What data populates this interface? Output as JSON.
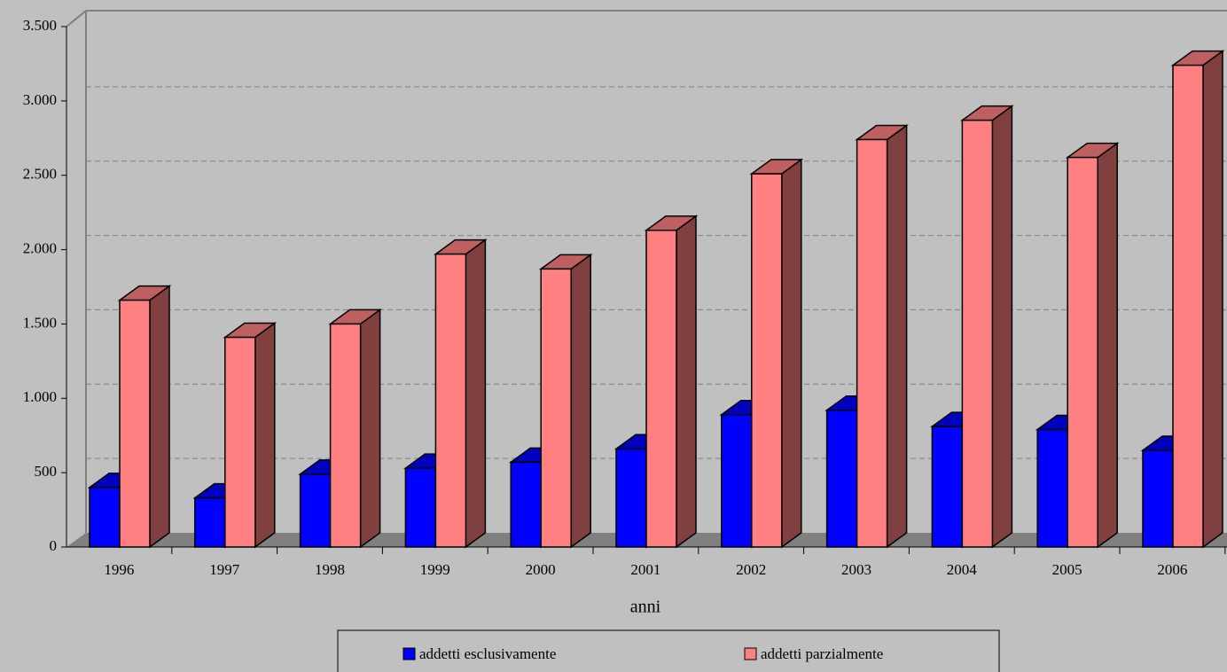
{
  "chart_data": {
    "type": "bar3d",
    "x_label": "anni",
    "categories": [
      "1996",
      "1997",
      "1998",
      "1999",
      "2000",
      "2001",
      "2002",
      "2003",
      "2004",
      "2005",
      "2006"
    ],
    "series": [
      {
        "name": "addetti esclusivamente",
        "color": "#0000ff",
        "values": [
          400,
          330,
          490,
          530,
          570,
          660,
          890,
          920,
          810,
          790,
          650
        ]
      },
      {
        "name": "addetti parzialmente",
        "color": "#ff8080",
        "values": [
          1660,
          1410,
          1500,
          1970,
          1870,
          2130,
          2510,
          2740,
          2870,
          2620,
          3240
        ]
      }
    ],
    "ylim": [
      0,
      3500
    ],
    "yticks": [
      0,
      500,
      {
        "value": 1000,
        "label": "1.000"
      },
      {
        "value": 1500,
        "label": "1.500"
      },
      {
        "value": 2000,
        "label": "2.000"
      },
      {
        "value": 2500,
        "label": "2.500"
      },
      {
        "value": 3000,
        "label": "3.000"
      },
      {
        "value": 3500,
        "label": "3.500"
      }
    ],
    "grid": true
  }
}
